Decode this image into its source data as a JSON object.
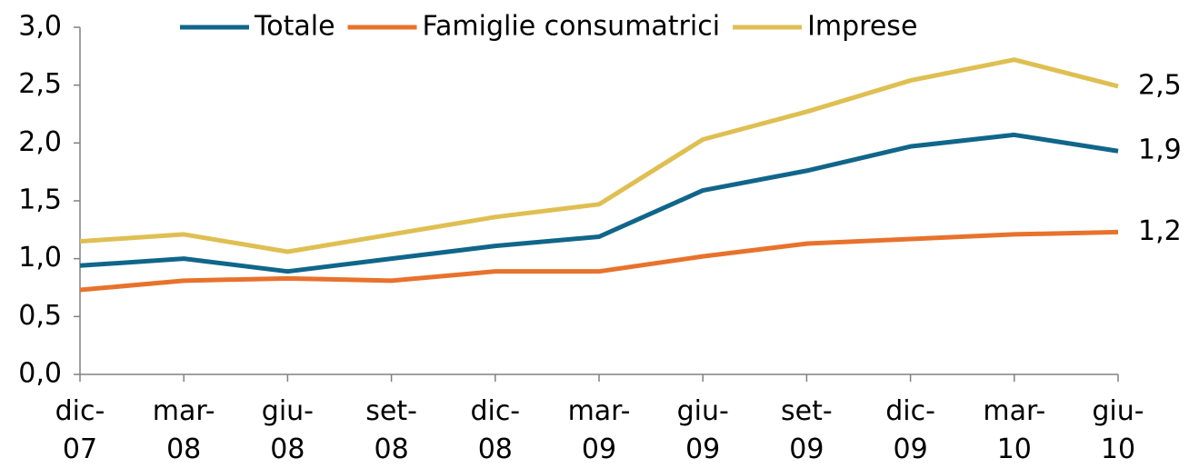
{
  "chart_data": {
    "type": "line",
    "categories": [
      "dic-\n07",
      "mar-\n08",
      "giu-\n08",
      "set-\n08",
      "dic-\n08",
      "mar-\n09",
      "giu-\n09",
      "set-\n09",
      "dic-\n09",
      "mar-\n10",
      "giu-\n10"
    ],
    "series": [
      {
        "name": "Totale",
        "color": "#10668a",
        "values": [
          0.94,
          1.0,
          0.89,
          1.0,
          1.11,
          1.19,
          1.59,
          1.76,
          1.97,
          2.07,
          1.93
        ],
        "value_labels": [
          null,
          null,
          null,
          null,
          null,
          null,
          null,
          null,
          null,
          null,
          "1,9"
        ]
      },
      {
        "name": "Famiglie consumatrici",
        "color": "#e8722c",
        "values": [
          0.73,
          0.81,
          0.83,
          0.81,
          0.89,
          0.89,
          1.02,
          1.13,
          1.17,
          1.21,
          1.23
        ],
        "value_labels": [
          null,
          null,
          null,
          null,
          null,
          null,
          null,
          null,
          null,
          null,
          "1,2"
        ]
      },
      {
        "name": "Imprese",
        "color": "#dfbf52",
        "values": [
          1.15,
          1.21,
          1.06,
          1.21,
          1.36,
          1.47,
          2.03,
          2.27,
          2.54,
          2.72,
          2.49
        ],
        "value_labels": [
          null,
          null,
          null,
          null,
          null,
          null,
          null,
          null,
          null,
          null,
          "2,5"
        ]
      }
    ],
    "ylim": [
      0,
      3
    ],
    "yticks": [
      {
        "value": 0,
        "label": "0,0"
      },
      {
        "value": 0.5,
        "label": "0,5"
      },
      {
        "value": 1,
        "label": "1,0"
      },
      {
        "value": 1.5,
        "label": "1,5"
      },
      {
        "value": 2,
        "label": "2,0"
      },
      {
        "value": 2.5,
        "label": "2,5"
      },
      {
        "value": 3,
        "label": "3,0"
      }
    ],
    "grid": false,
    "legend": "top"
  }
}
